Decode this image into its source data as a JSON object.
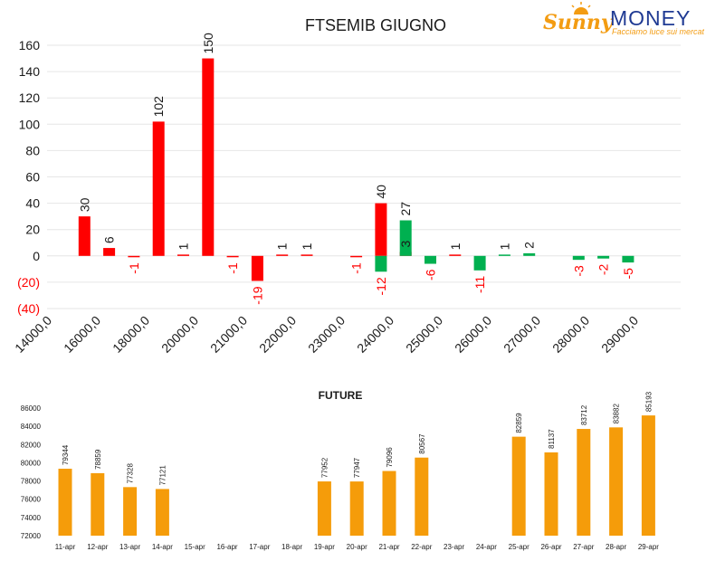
{
  "logo": {
    "name_part1": "Sunny",
    "name_part2": "MONEY",
    "tagline": "Facciamo luce sui mercati",
    "color_orange": "#f39c12",
    "color_blue": "#1f3a93"
  },
  "chart_data": [
    {
      "type": "bar",
      "title": "FTSEMIB GIUGNO",
      "ylim": [
        -40,
        160
      ],
      "yticks": [
        {
          "value": 160,
          "label": "160"
        },
        {
          "value": 140,
          "label": "140"
        },
        {
          "value": 120,
          "label": "120"
        },
        {
          "value": 100,
          "label": "100"
        },
        {
          "value": 80,
          "label": "80"
        },
        {
          "value": 60,
          "label": "60"
        },
        {
          "value": 40,
          "label": "40"
        },
        {
          "value": 20,
          "label": "20"
        },
        {
          "value": 0,
          "label": "0"
        },
        {
          "value": -20,
          "label": "(20)"
        },
        {
          "value": -40,
          "label": "(40)"
        }
      ],
      "grid": true,
      "x_tick_labels": [
        "14000,0",
        "16000,0",
        "18000,0",
        "20000,0",
        "21000,0",
        "22000,0",
        "23000,0",
        "24000,0",
        "25000,0",
        "26000,0",
        "27000,0",
        "28000,0",
        "29000,0"
      ],
      "colors": {
        "red": "#ff0000",
        "green": "#00b050",
        "negative_label": "#ff0000"
      },
      "series": [
        {
          "color": "red",
          "points": [
            {
              "slot": 1,
              "value": 30,
              "label": "30"
            },
            {
              "slot": 2,
              "value": 6,
              "label": "6"
            },
            {
              "slot": 3,
              "value": -1,
              "label": "-1"
            },
            {
              "slot": 4,
              "value": 102,
              "label": "102"
            },
            {
              "slot": 5,
              "value": 1,
              "label": "1"
            },
            {
              "slot": 6,
              "value": 150,
              "label": "150"
            },
            {
              "slot": 7,
              "value": -1,
              "label": "-1"
            },
            {
              "slot": 8,
              "value": -19,
              "label": "-19"
            },
            {
              "slot": 9,
              "value": 1,
              "label": "1"
            },
            {
              "slot": 10,
              "value": 1,
              "label": "1"
            },
            {
              "slot": 12,
              "value": -1,
              "label": "-1"
            },
            {
              "slot": 13,
              "value": 40,
              "label": "40"
            },
            {
              "slot": 14,
              "value": 3,
              "label": "3"
            },
            {
              "slot": 16,
              "value": 1,
              "label": "1"
            }
          ]
        },
        {
          "color": "green",
          "points": [
            {
              "slot": 13,
              "value": -12,
              "label": "-12"
            },
            {
              "slot": 14,
              "value": 27,
              "label": "27"
            },
            {
              "slot": 15,
              "value": -6,
              "label": "-6"
            },
            {
              "slot": 17,
              "value": -11,
              "label": "-11"
            },
            {
              "slot": 18,
              "value": 1,
              "label": "1"
            },
            {
              "slot": 19,
              "value": 2,
              "label": "2"
            },
            {
              "slot": 21,
              "value": -3,
              "label": "-3"
            },
            {
              "slot": 22,
              "value": -2,
              "label": "-2"
            },
            {
              "slot": 23,
              "value": -5,
              "label": "-5"
            }
          ]
        }
      ]
    },
    {
      "type": "bar",
      "title": "FUTURE",
      "ylim": [
        72000,
        86000
      ],
      "yticks": [
        72000,
        74000,
        76000,
        78000,
        80000,
        82000,
        84000,
        86000
      ],
      "grid": false,
      "bar_color": "#f59c0a",
      "categories": [
        "11-apr",
        "12-apr",
        "13-apr",
        "14-apr",
        "15-apr",
        "16-apr",
        "17-apr",
        "18-apr",
        "19-apr",
        "20-apr",
        "21-apr",
        "22-apr",
        "23-apr",
        "24-apr",
        "25-apr",
        "26-apr",
        "27-apr",
        "28-apr",
        "29-apr"
      ],
      "values": [
        79344,
        78859,
        77328,
        77121,
        null,
        null,
        null,
        null,
        77952,
        77947,
        79096,
        80567,
        null,
        null,
        82859,
        81137,
        83712,
        83882,
        85193
      ]
    }
  ]
}
